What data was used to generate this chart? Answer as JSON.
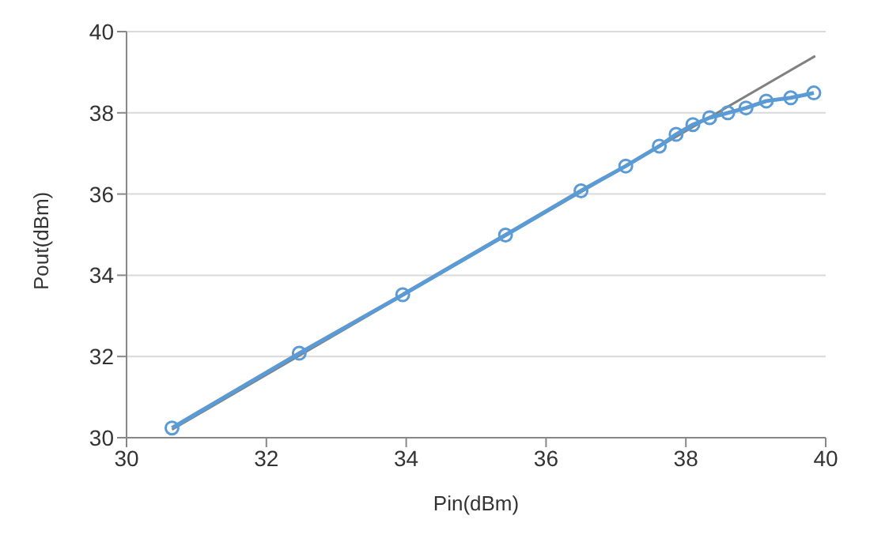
{
  "chart_data": {
    "type": "line",
    "xlabel": "Pin(dBm)",
    "ylabel": "Pout(dBm)",
    "xlim": [
      30,
      40
    ],
    "xticks": [
      30,
      32,
      34,
      36,
      38,
      40
    ],
    "ylim": [
      30,
      40
    ],
    "yticks": [
      30,
      32,
      34,
      36,
      38,
      40
    ],
    "grid": "y",
    "marker": "circle",
    "legend": false,
    "series": [
      {
        "color": "#808080",
        "marker": "none",
        "x": [
          30.65,
          39.85
        ],
        "values": [
          30.2,
          39.4
        ]
      },
      {
        "color": "#5b9bd5",
        "x": [
          30.65,
          32.47,
          33.95,
          35.42,
          36.5,
          37.14,
          37.62,
          37.86,
          38.1,
          38.34,
          38.6,
          38.86,
          39.15,
          39.5,
          39.83
        ],
        "values": [
          30.24,
          32.08,
          33.52,
          34.99,
          36.08,
          36.69,
          37.18,
          37.47,
          37.71,
          37.88,
          38.0,
          38.12,
          38.29,
          38.37,
          38.49
        ]
      }
    ]
  }
}
